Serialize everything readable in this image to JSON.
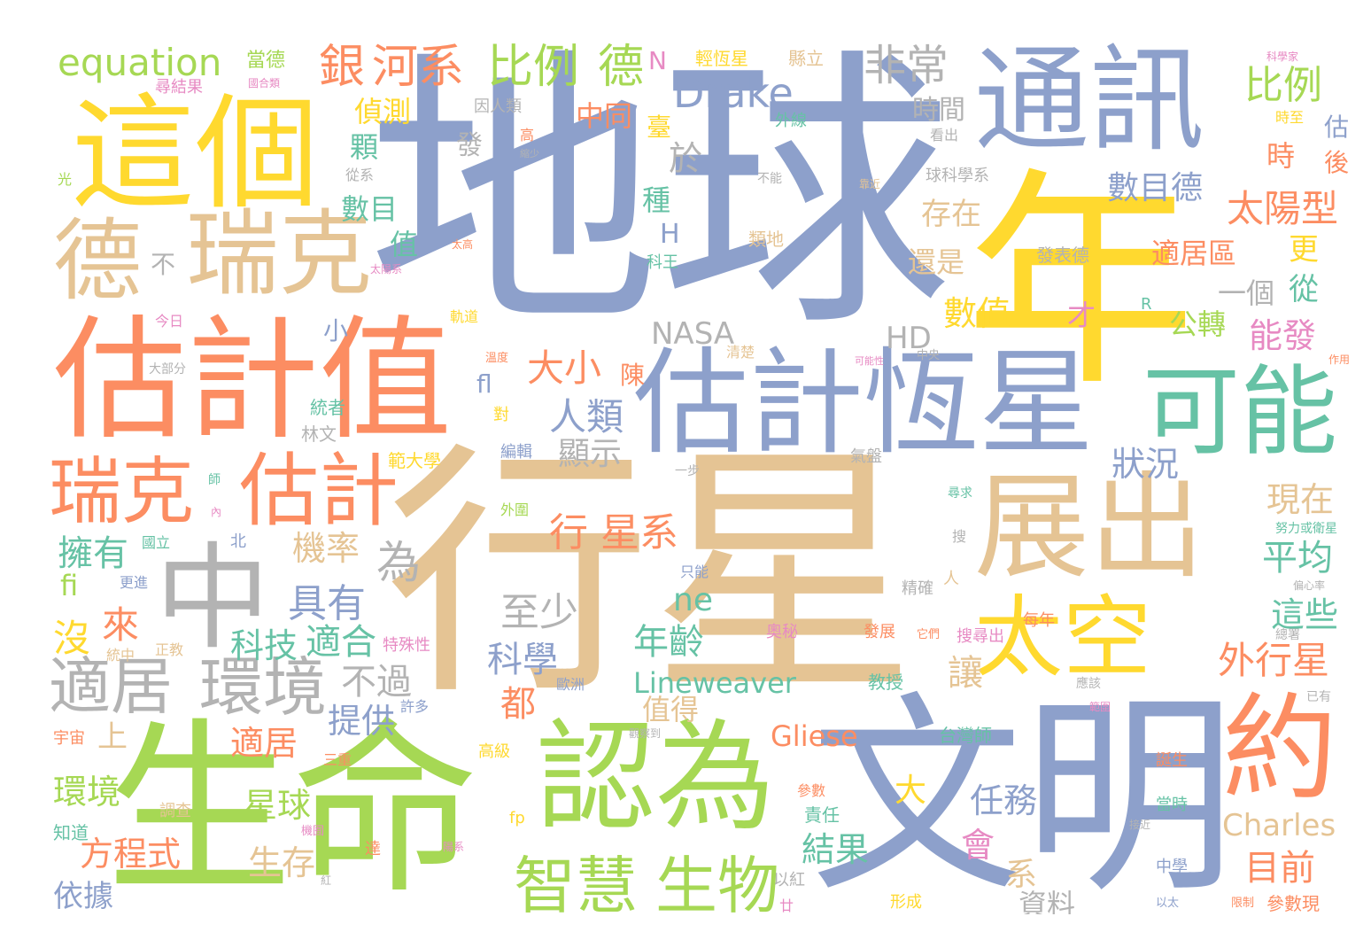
{
  "wordcloud": {
    "palette": {
      "blue": "#8da0cb",
      "yellow": "#ffd92f",
      "tan": "#e5c494",
      "orange": "#fc8d62",
      "green": "#a6d854",
      "teal": "#66c2a5",
      "gray": "#b3b3b3",
      "pink": "#e78ac3"
    },
    "words": [
      {
        "id": "w1",
        "text": "地球"
      },
      {
        "id": "w2",
        "text": "年"
      },
      {
        "id": "w3",
        "text": "行星"
      },
      {
        "id": "w4",
        "text": "生命"
      },
      {
        "id": "w5",
        "text": "文明"
      },
      {
        "id": "w6",
        "text": "估計值"
      },
      {
        "id": "w7",
        "text": "這個"
      },
      {
        "id": "w8",
        "text": "通訊"
      },
      {
        "id": "w9",
        "text": "估計恆星"
      },
      {
        "id": "w10",
        "text": "認為"
      },
      {
        "id": "w11",
        "text": "展出"
      },
      {
        "id": "w12",
        "text": "中"
      },
      {
        "id": "w13",
        "text": "瑞克"
      },
      {
        "id": "w14",
        "text": "德"
      },
      {
        "id": "w15",
        "text": "可能"
      },
      {
        "id": "w16",
        "text": "瑞克"
      },
      {
        "id": "w17",
        "text": "估計"
      },
      {
        "id": "w18",
        "text": "太空"
      },
      {
        "id": "w19",
        "text": "約"
      },
      {
        "id": "w20",
        "text": "智慧"
      },
      {
        "id": "w21",
        "text": "生物"
      },
      {
        "id": "w22",
        "text": "適居"
      },
      {
        "id": "w23",
        "text": "環境"
      },
      {
        "id": "w24",
        "text": "equation"
      },
      {
        "id": "w25",
        "text": "銀"
      },
      {
        "id": "w26",
        "text": "河系"
      },
      {
        "id": "w27",
        "text": "比例"
      },
      {
        "id": "w28",
        "text": "德"
      },
      {
        "id": "w29",
        "text": "Drake"
      },
      {
        "id": "w30",
        "text": "非常"
      },
      {
        "id": "w31",
        "text": "比例"
      },
      {
        "id": "w32",
        "text": "行 星系"
      },
      {
        "id": "w33",
        "text": "太陽型"
      },
      {
        "id": "w34",
        "text": "Lineweaver"
      },
      {
        "id": "w35",
        "text": "Gliese"
      },
      {
        "id": "w36",
        "text": "Charles"
      },
      {
        "id": "w37",
        "text": "NASA"
      },
      {
        "id": "w38",
        "text": "HD"
      },
      {
        "id": "w39",
        "text": "外行星"
      },
      {
        "id": "w40",
        "text": "數目德"
      },
      {
        "id": "w41",
        "text": "適居區"
      },
      {
        "id": "w42",
        "text": "公轉"
      },
      {
        "id": "w43",
        "text": "數值"
      },
      {
        "id": "w44",
        "text": "人類"
      },
      {
        "id": "w45",
        "text": "大小"
      },
      {
        "id": "w46",
        "text": "中同"
      },
      {
        "id": "w47",
        "text": "時間"
      },
      {
        "id": "w48",
        "text": "存在"
      },
      {
        "id": "w49",
        "text": "還是"
      },
      {
        "id": "w50",
        "text": "一個"
      },
      {
        "id": "w51",
        "text": "能發"
      },
      {
        "id": "w52",
        "text": "狀況"
      },
      {
        "id": "w53",
        "text": "顯示"
      },
      {
        "id": "w54",
        "text": "擁有"
      },
      {
        "id": "w55",
        "text": "機率"
      },
      {
        "id": "w56",
        "text": "具有"
      },
      {
        "id": "w57",
        "text": "至少"
      },
      {
        "id": "w58",
        "text": "科學"
      },
      {
        "id": "w59",
        "text": "科技"
      },
      {
        "id": "w60",
        "text": "適合"
      },
      {
        "id": "w61",
        "text": "不過"
      },
      {
        "id": "w62",
        "text": "提供"
      },
      {
        "id": "w63",
        "text": "年齡"
      },
      {
        "id": "w64",
        "text": "值得"
      },
      {
        "id": "w65",
        "text": "現在"
      },
      {
        "id": "w66",
        "text": "平均"
      },
      {
        "id": "w67",
        "text": "這些"
      },
      {
        "id": "w68",
        "text": "讓"
      },
      {
        "id": "w69",
        "text": "都"
      },
      {
        "id": "w70",
        "text": "ne"
      },
      {
        "id": "w71",
        "text": "為"
      },
      {
        "id": "w72",
        "text": "來"
      },
      {
        "id": "w73",
        "text": "沒"
      },
      {
        "id": "w74",
        "text": "上"
      },
      {
        "id": "w75",
        "text": "適居"
      },
      {
        "id": "w76",
        "text": "環境"
      },
      {
        "id": "w77",
        "text": "星球"
      },
      {
        "id": "w78",
        "text": "方程式"
      },
      {
        "id": "w79",
        "text": "生存"
      },
      {
        "id": "w80",
        "text": "依據"
      },
      {
        "id": "w81",
        "text": "任務"
      },
      {
        "id": "w82",
        "text": "結果"
      },
      {
        "id": "w83",
        "text": "會"
      },
      {
        "id": "w84",
        "text": "大"
      },
      {
        "id": "w85",
        "text": "系"
      },
      {
        "id": "w86",
        "text": "資料"
      },
      {
        "id": "w87",
        "text": "目前"
      },
      {
        "id": "w88",
        "text": "偵測"
      },
      {
        "id": "w89",
        "text": "顆"
      },
      {
        "id": "w90",
        "text": "數目"
      },
      {
        "id": "w91",
        "text": "值"
      },
      {
        "id": "w92",
        "text": "小"
      },
      {
        "id": "w93",
        "text": "fl"
      },
      {
        "id": "w94",
        "text": "fi"
      },
      {
        "id": "w95",
        "text": "於"
      },
      {
        "id": "w96",
        "text": "種"
      },
      {
        "id": "w97",
        "text": "H"
      },
      {
        "id": "w98",
        "text": "N"
      },
      {
        "id": "w99",
        "text": "臺"
      },
      {
        "id": "w100",
        "text": "發"
      },
      {
        "id": "w101",
        "text": "陳"
      },
      {
        "id": "w102",
        "text": "才"
      },
      {
        "id": "w103",
        "text": "時"
      },
      {
        "id": "w104",
        "text": "估"
      },
      {
        "id": "w105",
        "text": "後"
      },
      {
        "id": "w106",
        "text": "更"
      },
      {
        "id": "w107",
        "text": "從"
      },
      {
        "id": "w108",
        "text": "不"
      },
      {
        "id": "w109",
        "text": "當德"
      },
      {
        "id": "w110",
        "text": "輕恆星"
      },
      {
        "id": "w111",
        "text": "縣立"
      },
      {
        "id": "w112",
        "text": "因人類"
      },
      {
        "id": "w113",
        "text": "外線"
      },
      {
        "id": "w114",
        "text": "球科學系"
      },
      {
        "id": "w115",
        "text": "看出"
      },
      {
        "id": "w116",
        "text": "時至"
      },
      {
        "id": "w117",
        "text": "科學家"
      },
      {
        "id": "w118",
        "text": "尋結果"
      },
      {
        "id": "w119",
        "text": "國合類"
      },
      {
        "id": "w120",
        "text": "光"
      },
      {
        "id": "w121",
        "text": "從系"
      },
      {
        "id": "w122",
        "text": "高"
      },
      {
        "id": "w123",
        "text": "縮少"
      },
      {
        "id": "w124",
        "text": "不能"
      },
      {
        "id": "w125",
        "text": "靠近"
      },
      {
        "id": "w126",
        "text": "類地"
      },
      {
        "id": "w127",
        "text": "發表德"
      },
      {
        "id": "w128",
        "text": "科王"
      },
      {
        "id": "w129",
        "text": "今日"
      },
      {
        "id": "w130",
        "text": "軌道"
      },
      {
        "id": "w131",
        "text": "R"
      },
      {
        "id": "w132",
        "text": "溫度"
      },
      {
        "id": "w133",
        "text": "清楚"
      },
      {
        "id": "w134",
        "text": "中央"
      },
      {
        "id": "w135",
        "text": "可能性"
      },
      {
        "id": "w136",
        "text": "大部分"
      },
      {
        "id": "w137",
        "text": "統者"
      },
      {
        "id": "w138",
        "text": "林文"
      },
      {
        "id": "w139",
        "text": "對"
      },
      {
        "id": "w140",
        "text": "編輯"
      },
      {
        "id": "w141",
        "text": "範大學"
      },
      {
        "id": "w142",
        "text": "一步"
      },
      {
        "id": "w143",
        "text": "氣盤"
      },
      {
        "id": "w144",
        "text": "尋求"
      },
      {
        "id": "w145",
        "text": "外圍"
      },
      {
        "id": "w146",
        "text": "國立"
      },
      {
        "id": "w147",
        "text": "北"
      },
      {
        "id": "w148",
        "text": "更進"
      },
      {
        "id": "w149",
        "text": "只能"
      },
      {
        "id": "w150",
        "text": "精確"
      },
      {
        "id": "w151",
        "text": "人"
      },
      {
        "id": "w152",
        "text": "搜"
      },
      {
        "id": "w153",
        "text": "努力或衛星"
      },
      {
        "id": "w154",
        "text": "偏心率"
      },
      {
        "id": "w155",
        "text": "特殊性"
      },
      {
        "id": "w156",
        "text": "正教"
      },
      {
        "id": "w157",
        "text": "統中"
      },
      {
        "id": "w158",
        "text": "奧秘"
      },
      {
        "id": "w159",
        "text": "發展"
      },
      {
        "id": "w160",
        "text": "它們"
      },
      {
        "id": "w161",
        "text": "搜尋出"
      },
      {
        "id": "w162",
        "text": "每年"
      },
      {
        "id": "w163",
        "text": "總署"
      },
      {
        "id": "w164",
        "text": "教授"
      },
      {
        "id": "w165",
        "text": "應該"
      },
      {
        "id": "w166",
        "text": "歐洲"
      },
      {
        "id": "w167",
        "text": "許多"
      },
      {
        "id": "w168",
        "text": "宇宙"
      },
      {
        "id": "w169",
        "text": "三重"
      },
      {
        "id": "w170",
        "text": "高級"
      },
      {
        "id": "w171",
        "text": "觀察到"
      },
      {
        "id": "w172",
        "text": "台灣師"
      },
      {
        "id": "w173",
        "text": "已有"
      },
      {
        "id": "w174",
        "text": "誕生"
      },
      {
        "id": "w175",
        "text": "調查"
      },
      {
        "id": "w176",
        "text": "機囿"
      },
      {
        "id": "w177",
        "text": "知道"
      },
      {
        "id": "w178",
        "text": "fp"
      },
      {
        "id": "w179",
        "text": "達"
      },
      {
        "id": "w180",
        "text": "陽系"
      },
      {
        "id": "w181",
        "text": "參數"
      },
      {
        "id": "w182",
        "text": "責任"
      },
      {
        "id": "w183",
        "text": "接近"
      },
      {
        "id": "w184",
        "text": "當時"
      },
      {
        "id": "w185",
        "text": "中學"
      },
      {
        "id": "w186",
        "text": "以紅"
      },
      {
        "id": "w187",
        "text": "形成"
      },
      {
        "id": "w188",
        "text": "以太"
      },
      {
        "id": "w189",
        "text": "限制"
      },
      {
        "id": "w190",
        "text": "參數現"
      },
      {
        "id": "w191",
        "text": "廿"
      },
      {
        "id": "w192",
        "text": "範圍"
      },
      {
        "id": "w193",
        "text": "太陽系"
      },
      {
        "id": "w194",
        "text": "太高"
      },
      {
        "id": "w195",
        "text": "師"
      },
      {
        "id": "w196",
        "text": "內"
      },
      {
        "id": "w197",
        "text": "作用"
      },
      {
        "id": "w198",
        "text": "紅"
      }
    ]
  }
}
